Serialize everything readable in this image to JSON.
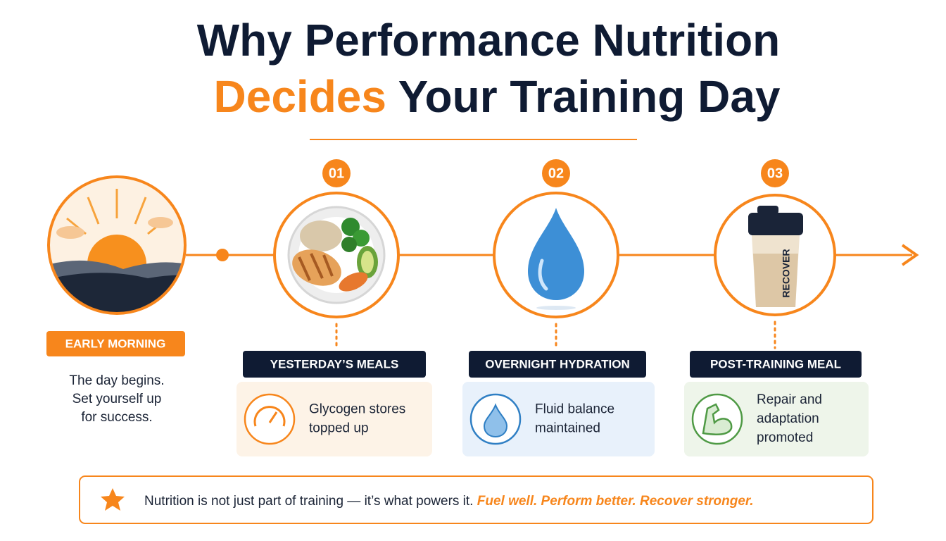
{
  "header": {
    "title_line1": "Why Performance Nutrition",
    "title_line2_highlight": "Decides",
    "title_line2_rest": "Your Training Day"
  },
  "start": {
    "label": "EARLY MORNING",
    "lines": [
      "The day begins.",
      "Set yourself up",
      "for success."
    ]
  },
  "steps": [
    {
      "number": "01",
      "label": "YESTERDAY’S MEALS",
      "lines": [
        "Glycogen stores",
        "topped up"
      ]
    },
    {
      "number": "02",
      "label": "OVERNIGHT HYDRATION",
      "lines": [
        "Fluid balance",
        "maintained"
      ]
    },
    {
      "number": "03",
      "label": "POST-TRAINING MEAL",
      "lines": [
        "Repair and",
        "adaptation",
        "promoted"
      ],
      "shaker_label": "RECOVER"
    }
  ],
  "footer": {
    "text": "Nutrition is not just part of training — it’s what powers it.",
    "highlight": "Fuel well. Perform better. Recover stronger."
  }
}
